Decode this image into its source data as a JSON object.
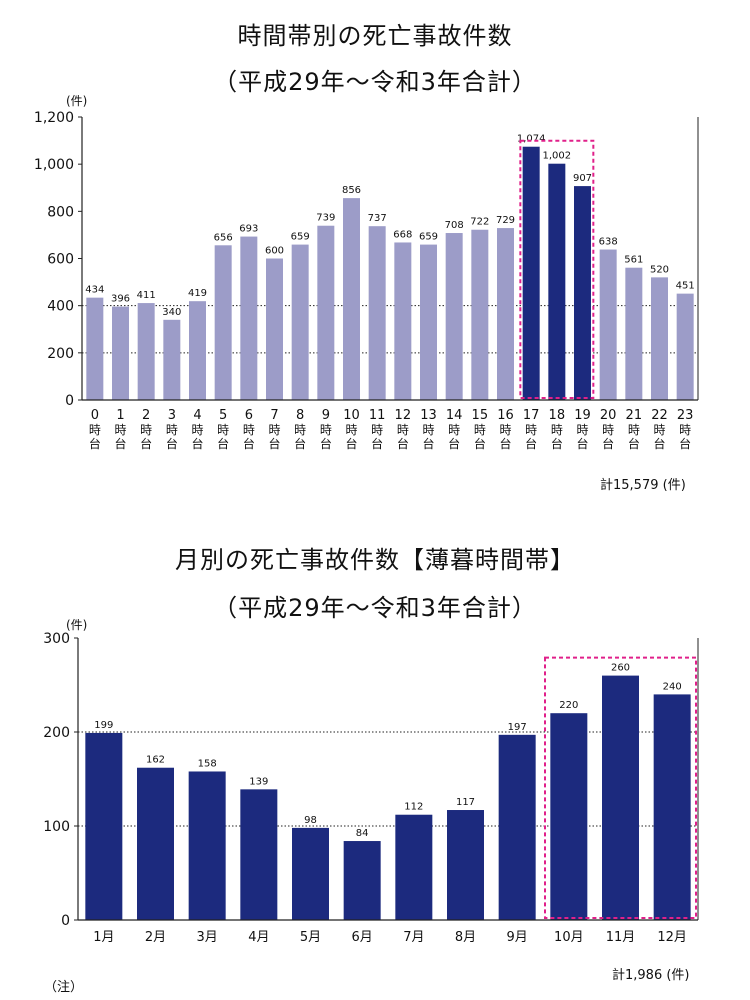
{
  "chart1": {
    "title": "時間帯別の死亡事故件数",
    "subtitle": "（平成29年～令和3年合計）",
    "y_unit": "(件)",
    "total_label": "計15,579 (件)"
  },
  "chart2": {
    "title": "月別の死亡事故件数【薄暮時間帯】",
    "subtitle": "（平成29年～令和3年合計）",
    "y_unit": "(件)",
    "total_label": "計1,986 (件)"
  },
  "note": "（注）",
  "chart_data": [
    {
      "type": "bar",
      "title": "時間帯別の死亡事故件数",
      "subtitle": "（平成29年～令和3年合計）",
      "ylabel": "(件)",
      "categories": [
        "0",
        "1",
        "2",
        "3",
        "4",
        "5",
        "6",
        "7",
        "8",
        "9",
        "10",
        "11",
        "12",
        "13",
        "14",
        "15",
        "16",
        "17",
        "18",
        "19",
        "20",
        "21",
        "22",
        "23"
      ],
      "category_suffix": [
        "時",
        "台"
      ],
      "values": [
        434,
        396,
        411,
        340,
        419,
        656,
        693,
        600,
        659,
        739,
        856,
        737,
        668,
        659,
        708,
        722,
        729,
        1074,
        1002,
        907,
        638,
        561,
        520,
        451
      ],
      "value_labels": [
        "434",
        "396",
        "411",
        "340",
        "419",
        "656",
        "693",
        "600",
        "659",
        "739",
        "856",
        "737",
        "668",
        "659",
        "708",
        "722",
        "729",
        "1,074",
        "1,002",
        "907",
        "638",
        "561",
        "520",
        "451"
      ],
      "highlight": [
        17,
        18,
        19
      ],
      "ylim": [
        0,
        1200
      ],
      "yticks": [
        0,
        200,
        400,
        600,
        800,
        1000,
        1200
      ],
      "ytick_labels": [
        "0",
        "200",
        "400",
        "600",
        "800",
        "1,000",
        "1,200"
      ],
      "dotted_gridlines": [
        200,
        400
      ],
      "colors": {
        "normal": "#9c9cc8",
        "highlight": "#1c2a7e",
        "highlight_box": "#e0208a"
      }
    },
    {
      "type": "bar",
      "title": "月別の死亡事故件数【薄暮時間帯】",
      "subtitle": "（平成29年～令和3年合計）",
      "ylabel": "(件)",
      "categories": [
        "1月",
        "2月",
        "3月",
        "4月",
        "5月",
        "6月",
        "7月",
        "8月",
        "9月",
        "10月",
        "11月",
        "12月"
      ],
      "values": [
        199,
        162,
        158,
        139,
        98,
        84,
        112,
        117,
        197,
        220,
        260,
        240
      ],
      "value_labels": [
        "199",
        "162",
        "158",
        "139",
        "98",
        "84",
        "112",
        "117",
        "197",
        "220",
        "260",
        "240"
      ],
      "highlight": [
        9,
        10,
        11
      ],
      "ylim": [
        0,
        300
      ],
      "yticks": [
        0,
        100,
        200,
        300
      ],
      "ytick_labels": [
        "0",
        "100",
        "200",
        "300"
      ],
      "dotted_gridlines": [
        100,
        200
      ],
      "colors": {
        "normal": "#1c2a7e",
        "highlight": "#1c2a7e",
        "highlight_box": "#e0208a"
      }
    }
  ]
}
